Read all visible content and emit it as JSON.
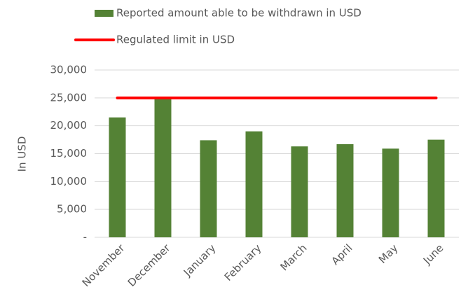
{
  "chart_data": {
    "type": "bar",
    "y_label": "In USD",
    "categories": [
      "November",
      "December",
      "January",
      "February",
      "March",
      "April",
      "May",
      "June"
    ],
    "series": [
      {
        "name": "Reported amount able to be withdrawn in USD",
        "color": "#548235",
        "type": "bar",
        "values": [
          21500,
          25000,
          17400,
          19000,
          16300,
          16700,
          15900,
          17500
        ]
      },
      {
        "name": "Regulated limit in USD",
        "color": "#ff0000",
        "type": "line",
        "values": [
          25000,
          25000,
          25000,
          25000,
          25000,
          25000,
          25000,
          25000
        ]
      }
    ],
    "ylim": [
      0,
      30000
    ],
    "yticks": [
      {
        "value": 0,
        "label": "-"
      },
      {
        "value": 5000,
        "label": "5,000"
      },
      {
        "value": 10000,
        "label": "10,000"
      },
      {
        "value": 15000,
        "label": "15,000"
      },
      {
        "value": 20000,
        "label": "20,000"
      },
      {
        "value": 25000,
        "label": "25,000"
      },
      {
        "value": 30000,
        "label": "30,000"
      }
    ],
    "grid": true
  }
}
